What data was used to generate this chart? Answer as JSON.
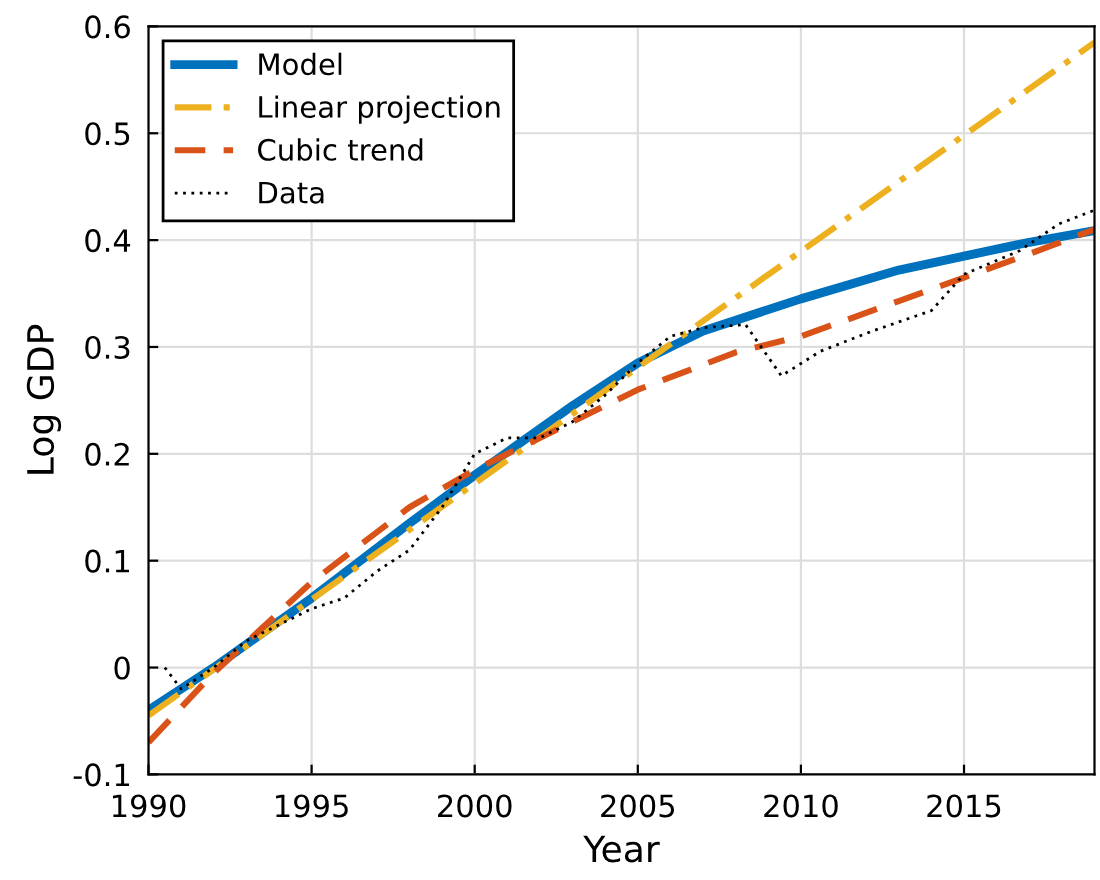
{
  "chart_data": {
    "type": "line",
    "xlabel": "Year",
    "ylabel": "Log GDP",
    "xlim": [
      1990,
      2019
    ],
    "ylim": [
      -0.1,
      0.6
    ],
    "xticks": [
      1990,
      1995,
      2000,
      2005,
      2010,
      2015
    ],
    "yticks": [
      -0.1,
      0,
      0.1,
      0.2,
      0.3,
      0.4,
      0.5,
      0.6
    ],
    "grid": true,
    "legend": "top left",
    "series": [
      {
        "name": "Model",
        "color": "#0072bd",
        "line_style": "solid",
        "x": [
          1990,
          1992,
          1995,
          1998,
          2000,
          2003,
          2005,
          2007,
          2010,
          2013,
          2015,
          2017,
          2019
        ],
        "values": [
          -0.04,
          0.0,
          0.065,
          0.135,
          0.18,
          0.245,
          0.285,
          0.315,
          0.345,
          0.372,
          0.385,
          0.398,
          0.409
        ]
      },
      {
        "name": "Linear projection",
        "color": "#edb120",
        "line_style": "dashdot",
        "x": [
          1990,
          2019
        ],
        "values": [
          -0.045,
          0.585
        ]
      },
      {
        "name": "Cubic trend",
        "color": "#d95319",
        "line_style": "dashed",
        "x": [
          1990,
          1992,
          1995,
          1998,
          2000,
          2003,
          2005,
          2008,
          2010,
          2013,
          2015,
          2017,
          2019
        ],
        "values": [
          -0.07,
          -0.005,
          0.08,
          0.15,
          0.185,
          0.23,
          0.26,
          0.295,
          0.31,
          0.343,
          0.365,
          0.387,
          0.41
        ]
      },
      {
        "name": "Data",
        "color": "#000000",
        "line_style": "dotted",
        "x": [
          1990.5,
          1991,
          1992,
          1993,
          1994,
          1995,
          1996,
          1997,
          1998,
          1999,
          2000,
          2001,
          2002,
          2003,
          2004,
          2005,
          2006,
          2007,
          2008.3,
          2009.4,
          2010.6,
          2012.2,
          2014,
          2015,
          2016.7,
          2017.9,
          2019
        ],
        "values": [
          0.0,
          -0.02,
          0.0,
          0.025,
          0.04,
          0.055,
          0.065,
          0.09,
          0.11,
          0.15,
          0.2,
          0.215,
          0.215,
          0.23,
          0.255,
          0.285,
          0.31,
          0.318,
          0.321,
          0.273,
          0.296,
          0.315,
          0.334,
          0.368,
          0.39,
          0.415,
          0.428
        ]
      }
    ]
  }
}
